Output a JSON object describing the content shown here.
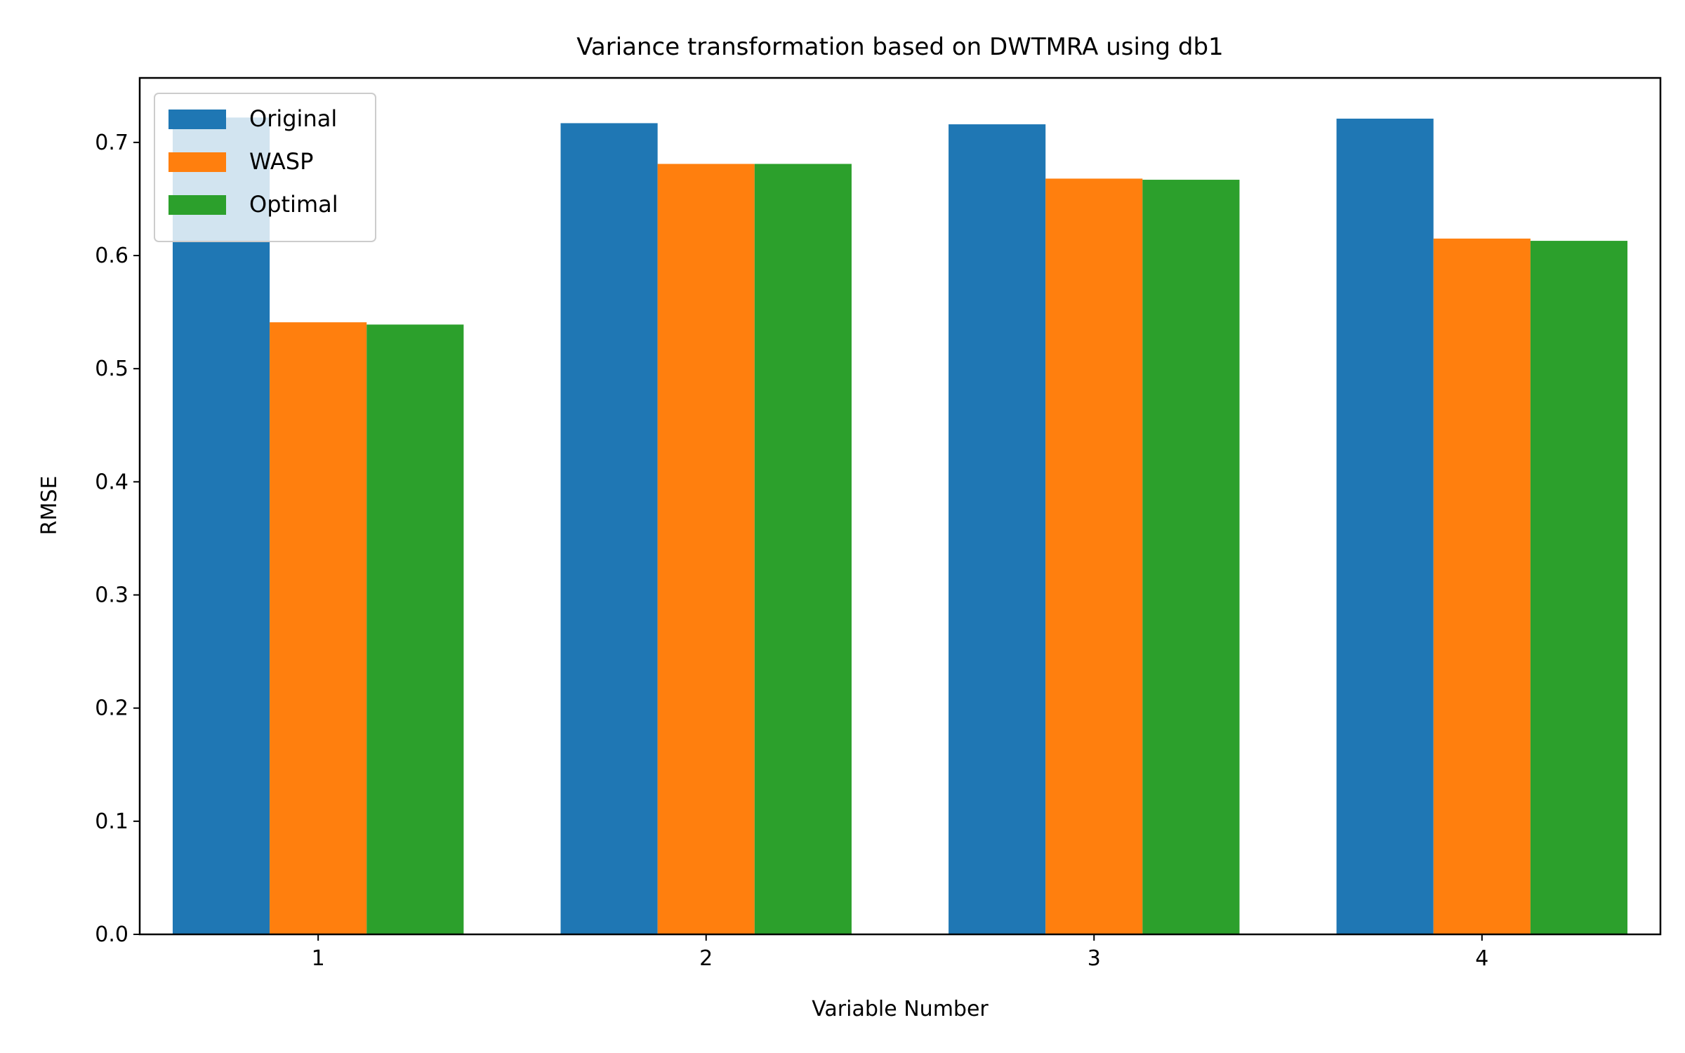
{
  "chart_data": {
    "type": "bar",
    "title": "Variance transformation based on DWTMRA using db1",
    "xlabel": "Variable Number",
    "ylabel": "RMSE",
    "categories": [
      "1",
      "2",
      "3",
      "4"
    ],
    "series": [
      {
        "name": "Original",
        "color": "#1f77b4",
        "values": [
          0.722,
          0.717,
          0.716,
          0.721
        ]
      },
      {
        "name": "WASP",
        "color": "#ff7f0e",
        "values": [
          0.541,
          0.681,
          0.668,
          0.615
        ]
      },
      {
        "name": "Optimal",
        "color": "#2ca02c",
        "values": [
          0.539,
          0.681,
          0.667,
          0.613
        ]
      }
    ],
    "ylim": [
      0.0,
      0.757
    ],
    "yticks": [
      "0.0",
      "0.1",
      "0.2",
      "0.3",
      "0.4",
      "0.5",
      "0.6",
      "0.7"
    ],
    "grid": false,
    "legend_position": "top-left"
  }
}
